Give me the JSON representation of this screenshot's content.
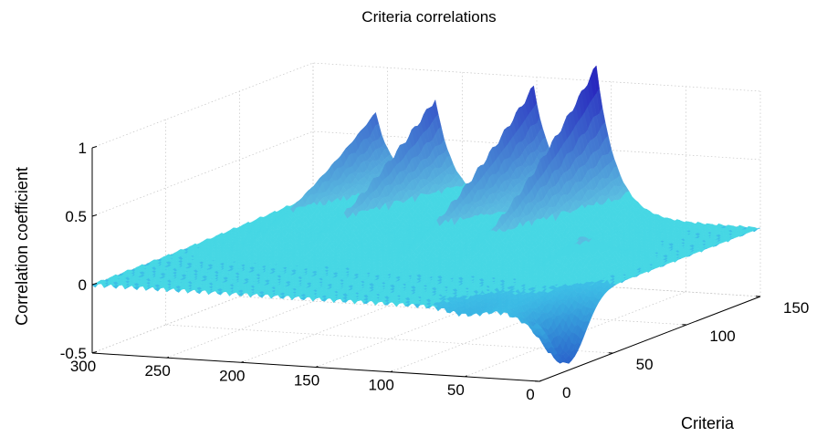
{
  "chart_data": {
    "type": "surface3d",
    "title": "Criteria correlations",
    "xlabel": "",
    "ylabel": "Criteria",
    "zlabel": "Correlation coefficient",
    "xlim": [
      0,
      300
    ],
    "ylim": [
      0,
      150
    ],
    "zlim": [
      -0.5,
      1
    ],
    "x_ticks": [
      300,
      250,
      200,
      150,
      100,
      50,
      0
    ],
    "y_ticks": [
      0,
      50,
      100,
      150
    ],
    "z_ticks": [
      -0.5,
      0,
      0.5,
      1
    ],
    "grid": true,
    "colormap": "cool-cyan-to-blue",
    "peaks": [
      {
        "x": 258,
        "y": 135,
        "z": 0.5
      },
      {
        "x": 218,
        "y": 135,
        "z": 0.6
      },
      {
        "x": 152,
        "y": 135,
        "z": 0.7
      },
      {
        "x": 110,
        "y": 135,
        "z": 0.85
      },
      {
        "x": 45,
        "y": 75,
        "z": 0.2
      }
    ],
    "troughs": [
      {
        "x": 2,
        "y": 20,
        "z": -0.45
      },
      {
        "x": 50,
        "y": 5,
        "z": -0.05
      }
    ]
  }
}
